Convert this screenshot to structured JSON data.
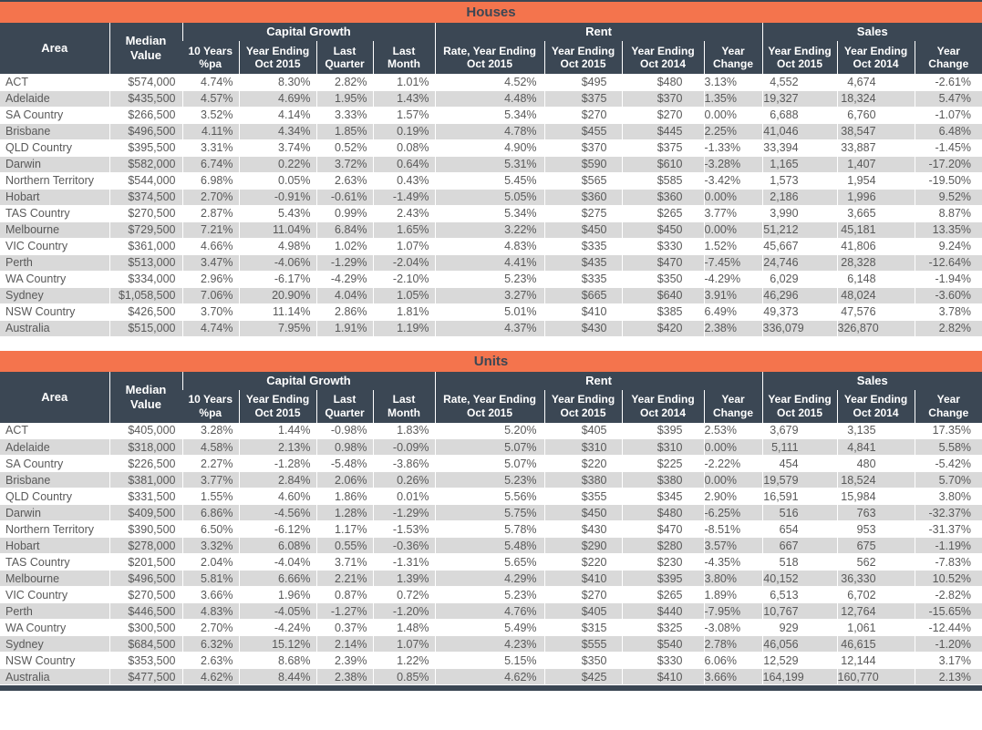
{
  "colors": {
    "title_bar_orange": "#f4744d",
    "header_navy": "#3b4754",
    "row_stripe_gray": "#d9d9d9",
    "body_text_gray": "#595959"
  },
  "columns": {
    "area": "Area",
    "median_value": "Median\nValue",
    "groups": {
      "capital_growth": "Capital Growth",
      "rent": "Rent",
      "sales": "Sales"
    },
    "cg_10y": "10 Years\n%pa",
    "cg_ye_2015": "Year Ending\nOct 2015",
    "cg_last_quarter": "Last\nQuarter",
    "cg_last_month": "Last\nMonth",
    "rent_rate_ye_2015": "Rate, Year Ending\nOct 2015",
    "rent_ye_2015": "Year Ending\nOct 2015",
    "rent_ye_2014": "Year Ending\nOct 2014",
    "rent_year_change": "Year\nChange",
    "sales_ye_2015": "Year Ending\nOct 2015",
    "sales_ye_2014": "Year Ending\nOct 2014",
    "sales_year_change": "Year\nChange"
  },
  "tables": [
    {
      "title": "Houses",
      "rows": [
        [
          "ACT",
          "$574,000",
          "4.74%",
          "8.30%",
          "2.82%",
          "1.01%",
          "4.52%",
          "$495",
          "$480",
          "3.13%",
          "4,552",
          "4,674",
          "-2.61%"
        ],
        [
          "Adelaide",
          "$435,500",
          "4.57%",
          "4.69%",
          "1.95%",
          "1.43%",
          "4.48%",
          "$375",
          "$370",
          "1.35%",
          "19,327",
          "18,324",
          "5.47%"
        ],
        [
          "SA Country",
          "$266,500",
          "3.52%",
          "4.14%",
          "3.33%",
          "1.57%",
          "5.34%",
          "$270",
          "$270",
          "0.00%",
          "6,688",
          "6,760",
          "-1.07%"
        ],
        [
          "Brisbane",
          "$496,500",
          "4.11%",
          "4.34%",
          "1.85%",
          "0.19%",
          "4.78%",
          "$455",
          "$445",
          "2.25%",
          "41,046",
          "38,547",
          "6.48%"
        ],
        [
          "QLD Country",
          "$395,500",
          "3.31%",
          "3.74%",
          "0.52%",
          "0.08%",
          "4.90%",
          "$370",
          "$375",
          "-1.33%",
          "33,394",
          "33,887",
          "-1.45%"
        ],
        [
          "Darwin",
          "$582,000",
          "6.74%",
          "0.22%",
          "3.72%",
          "0.64%",
          "5.31%",
          "$590",
          "$610",
          "-3.28%",
          "1,165",
          "1,407",
          "-17.20%"
        ],
        [
          "Northern Territory",
          "$544,000",
          "6.98%",
          "0.05%",
          "2.63%",
          "0.43%",
          "5.45%",
          "$565",
          "$585",
          "-3.42%",
          "1,573",
          "1,954",
          "-19.50%"
        ],
        [
          "Hobart",
          "$374,500",
          "2.70%",
          "-0.91%",
          "-0.61%",
          "-1.49%",
          "5.05%",
          "$360",
          "$360",
          "0.00%",
          "2,186",
          "1,996",
          "9.52%"
        ],
        [
          "TAS Country",
          "$270,500",
          "2.87%",
          "5.43%",
          "0.99%",
          "2.43%",
          "5.34%",
          "$275",
          "$265",
          "3.77%",
          "3,990",
          "3,665",
          "8.87%"
        ],
        [
          "Melbourne",
          "$729,500",
          "7.21%",
          "11.04%",
          "6.84%",
          "1.65%",
          "3.22%",
          "$450",
          "$450",
          "0.00%",
          "51,212",
          "45,181",
          "13.35%"
        ],
        [
          "VIC Country",
          "$361,000",
          "4.66%",
          "4.98%",
          "1.02%",
          "1.07%",
          "4.83%",
          "$335",
          "$330",
          "1.52%",
          "45,667",
          "41,806",
          "9.24%"
        ],
        [
          "Perth",
          "$513,000",
          "3.47%",
          "-4.06%",
          "-1.29%",
          "-2.04%",
          "4.41%",
          "$435",
          "$470",
          "-7.45%",
          "24,746",
          "28,328",
          "-12.64%"
        ],
        [
          "WA Country",
          "$334,000",
          "2.96%",
          "-6.17%",
          "-4.29%",
          "-2.10%",
          "5.23%",
          "$335",
          "$350",
          "-4.29%",
          "6,029",
          "6,148",
          "-1.94%"
        ],
        [
          "Sydney",
          "$1,058,500",
          "7.06%",
          "20.90%",
          "4.04%",
          "1.05%",
          "3.27%",
          "$665",
          "$640",
          "3.91%",
          "46,296",
          "48,024",
          "-3.60%"
        ],
        [
          "NSW Country",
          "$426,500",
          "3.70%",
          "11.14%",
          "2.86%",
          "1.81%",
          "5.01%",
          "$410",
          "$385",
          "6.49%",
          "49,373",
          "47,576",
          "3.78%"
        ],
        [
          "Australia",
          "$515,000",
          "4.74%",
          "7.95%",
          "1.91%",
          "1.19%",
          "4.37%",
          "$430",
          "$420",
          "2.38%",
          "336,079",
          "326,870",
          "2.82%"
        ]
      ]
    },
    {
      "title": "Units",
      "rows": [
        [
          "ACT",
          "$405,000",
          "3.28%",
          "1.44%",
          "-0.98%",
          "1.83%",
          "5.20%",
          "$405",
          "$395",
          "2.53%",
          "3,679",
          "3,135",
          "17.35%"
        ],
        [
          "Adelaide",
          "$318,000",
          "4.58%",
          "2.13%",
          "0.98%",
          "-0.09%",
          "5.07%",
          "$310",
          "$310",
          "0.00%",
          "5,111",
          "4,841",
          "5.58%"
        ],
        [
          "SA Country",
          "$226,500",
          "2.27%",
          "-1.28%",
          "-5.48%",
          "-3.86%",
          "5.07%",
          "$220",
          "$225",
          "-2.22%",
          "454",
          "480",
          "-5.42%"
        ],
        [
          "Brisbane",
          "$381,000",
          "3.77%",
          "2.84%",
          "2.06%",
          "0.26%",
          "5.23%",
          "$380",
          "$380",
          "0.00%",
          "19,579",
          "18,524",
          "5.70%"
        ],
        [
          "QLD Country",
          "$331,500",
          "1.55%",
          "4.60%",
          "1.86%",
          "0.01%",
          "5.56%",
          "$355",
          "$345",
          "2.90%",
          "16,591",
          "15,984",
          "3.80%"
        ],
        [
          "Darwin",
          "$409,500",
          "6.86%",
          "-4.56%",
          "1.28%",
          "-1.29%",
          "5.75%",
          "$450",
          "$480",
          "-6.25%",
          "516",
          "763",
          "-32.37%"
        ],
        [
          "Northern Territory",
          "$390,500",
          "6.50%",
          "-6.12%",
          "1.17%",
          "-1.53%",
          "5.78%",
          "$430",
          "$470",
          "-8.51%",
          "654",
          "953",
          "-31.37%"
        ],
        [
          "Hobart",
          "$278,000",
          "3.32%",
          "6.08%",
          "0.55%",
          "-0.36%",
          "5.48%",
          "$290",
          "$280",
          "3.57%",
          "667",
          "675",
          "-1.19%"
        ],
        [
          "TAS Country",
          "$201,500",
          "2.04%",
          "-4.04%",
          "3.71%",
          "-1.31%",
          "5.65%",
          "$220",
          "$230",
          "-4.35%",
          "518",
          "562",
          "-7.83%"
        ],
        [
          "Melbourne",
          "$496,500",
          "5.81%",
          "6.66%",
          "2.21%",
          "1.39%",
          "4.29%",
          "$410",
          "$395",
          "3.80%",
          "40,152",
          "36,330",
          "10.52%"
        ],
        [
          "VIC Country",
          "$270,500",
          "3.66%",
          "1.96%",
          "0.87%",
          "0.72%",
          "5.23%",
          "$270",
          "$265",
          "1.89%",
          "6,513",
          "6,702",
          "-2.82%"
        ],
        [
          "Perth",
          "$446,500",
          "4.83%",
          "-4.05%",
          "-1.27%",
          "-1.20%",
          "4.76%",
          "$405",
          "$440",
          "-7.95%",
          "10,767",
          "12,764",
          "-15.65%"
        ],
        [
          "WA Country",
          "$300,500",
          "2.70%",
          "-4.24%",
          "0.37%",
          "1.48%",
          "5.49%",
          "$315",
          "$325",
          "-3.08%",
          "929",
          "1,061",
          "-12.44%"
        ],
        [
          "Sydney",
          "$684,500",
          "6.32%",
          "15.12%",
          "2.14%",
          "1.07%",
          "4.23%",
          "$555",
          "$540",
          "2.78%",
          "46,056",
          "46,615",
          "-1.20%"
        ],
        [
          "NSW Country",
          "$353,500",
          "2.63%",
          "8.68%",
          "2.39%",
          "1.22%",
          "5.15%",
          "$350",
          "$330",
          "6.06%",
          "12,529",
          "12,144",
          "3.17%"
        ],
        [
          "Australia",
          "$477,500",
          "4.62%",
          "8.44%",
          "2.38%",
          "0.85%",
          "4.62%",
          "$425",
          "$410",
          "3.66%",
          "164,199",
          "160,770",
          "2.13%"
        ]
      ]
    }
  ]
}
